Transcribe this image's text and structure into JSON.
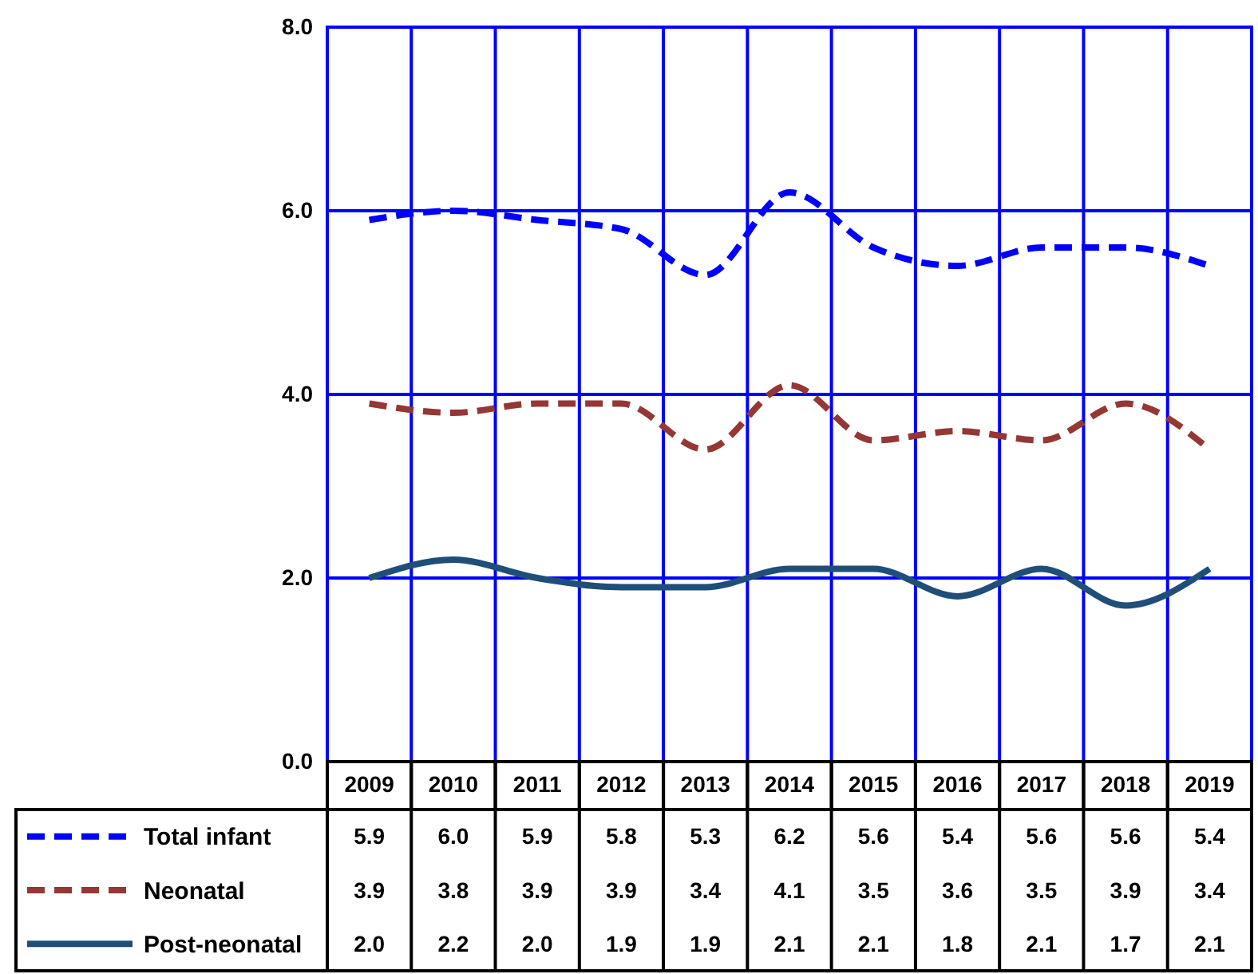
{
  "chart_data": {
    "type": "line",
    "categories": [
      "2009",
      "2010",
      "2011",
      "2012",
      "2013",
      "2014",
      "2015",
      "2016",
      "2017",
      "2018",
      "2019"
    ],
    "series": [
      {
        "name": "Total infant",
        "color": "#0000ff",
        "line_style": "dashed",
        "values": [
          5.9,
          6.0,
          5.9,
          5.8,
          5.3,
          6.2,
          5.6,
          5.4,
          5.6,
          5.6,
          5.4
        ],
        "value_labels": [
          "5.9",
          "6.0",
          "5.9",
          "5.8",
          "5.3",
          "6.2",
          "5.6",
          "5.4",
          "5.6",
          "5.6",
          "5.4"
        ]
      },
      {
        "name": "Neonatal",
        "color": "#953735",
        "line_style": "dashed",
        "values": [
          3.9,
          3.8,
          3.9,
          3.9,
          3.4,
          4.1,
          3.5,
          3.6,
          3.5,
          3.9,
          3.4
        ],
        "value_labels": [
          "3.9",
          "3.8",
          "3.9",
          "3.9",
          "3.4",
          "4.1",
          "3.5",
          "3.6",
          "3.5",
          "3.9",
          "3.4"
        ]
      },
      {
        "name": "Post-neonatal",
        "color": "#1f4e79",
        "line_style": "solid",
        "values": [
          2.0,
          2.2,
          2.0,
          1.9,
          1.9,
          2.1,
          2.1,
          1.8,
          2.1,
          1.7,
          2.1
        ],
        "value_labels": [
          "2.0",
          "2.2",
          "2.0",
          "1.9",
          "1.9",
          "2.1",
          "2.1",
          "1.8",
          "2.1",
          "1.7",
          "2.1"
        ]
      }
    ],
    "ylim": [
      0,
      8
    ],
    "yticks": [
      {
        "value": 0,
        "label": "0.0"
      },
      {
        "value": 2,
        "label": "2.0"
      },
      {
        "value": 4,
        "label": "4.0"
      },
      {
        "value": 6,
        "label": "6.0"
      },
      {
        "value": 8,
        "label": "8.0"
      }
    ],
    "grid": true,
    "legend": "bottom"
  }
}
